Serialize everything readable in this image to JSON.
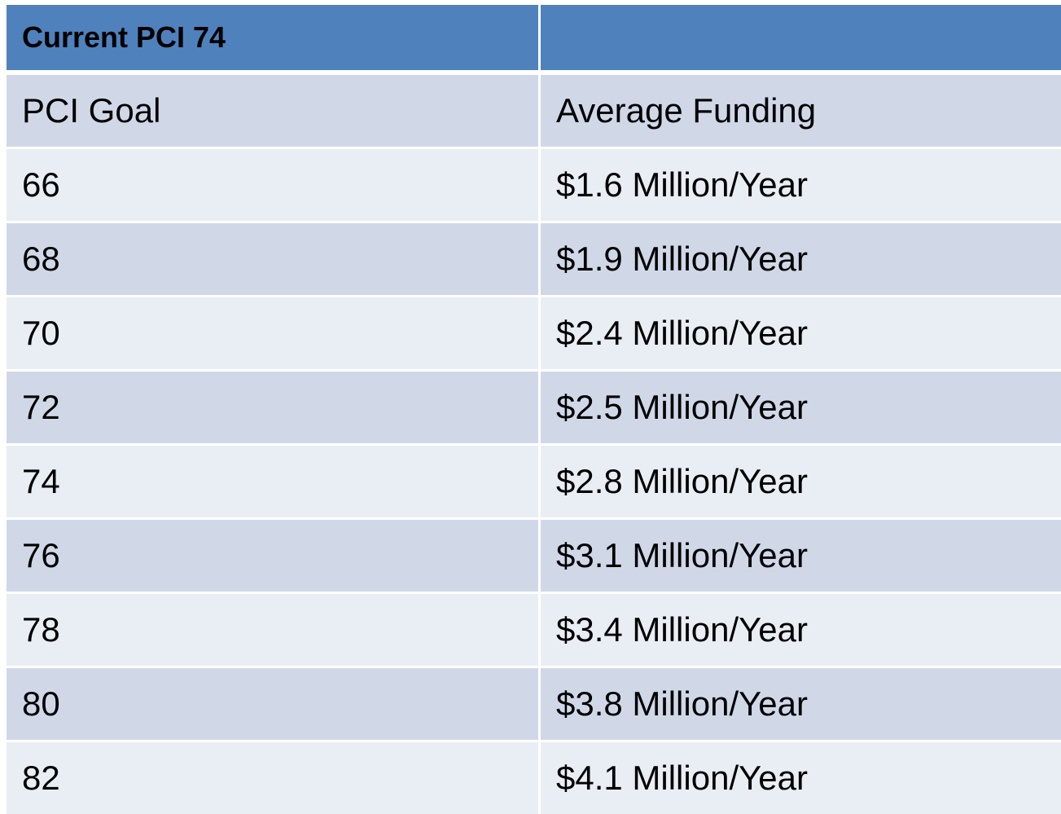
{
  "header": {
    "title": "Current PCI 74"
  },
  "table": {
    "columns": [
      "PCI Goal",
      "Average Funding"
    ],
    "rows": [
      [
        "66",
        "$1.6 Million/Year"
      ],
      [
        "68",
        "$1.9 Million/Year"
      ],
      [
        "70",
        "$2.4 Million/Year"
      ],
      [
        "72",
        "$2.5 Million/Year"
      ],
      [
        "74",
        "$2.8 Million/Year"
      ],
      [
        "76",
        "$3.1 Million/Year"
      ],
      [
        "78",
        "$3.4 Million/Year"
      ],
      [
        "80",
        "$3.8 Million/Year"
      ],
      [
        "82",
        "$4.1 Million/Year"
      ]
    ]
  }
}
